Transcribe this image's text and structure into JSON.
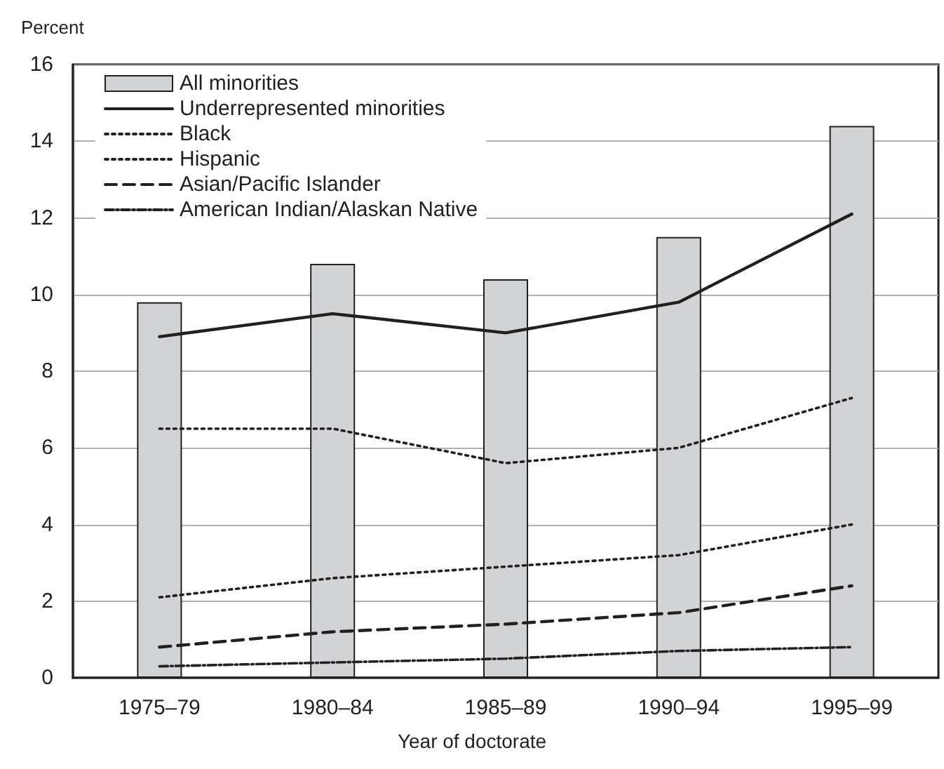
{
  "chart_data": {
    "type": "bar",
    "ylabel": "Percent",
    "xlabel": "Year of doctorate",
    "categories": [
      "1975–79",
      "1980–84",
      "1985–89",
      "1990–94",
      "1995–99"
    ],
    "series": [
      {
        "name": "All minorities",
        "color": "#d1d3d4",
        "values": [
          9.8,
          10.8,
          10.4,
          11.5,
          14.4
        ]
      },
      {
        "name": "Underrepresented minorities",
        "type": "line",
        "color": "#231f20",
        "line_style": "solid",
        "values": [
          8.9,
          9.5,
          9.0,
          9.8,
          12.1
        ]
      },
      {
        "name": "Black",
        "type": "line",
        "color": "#231f20",
        "line_style": "dotted",
        "values": [
          6.5,
          6.5,
          5.6,
          6.0,
          7.3
        ]
      },
      {
        "name": "Hispanic",
        "type": "line",
        "color": "#231f20",
        "line_style": "dotted",
        "values": [
          2.1,
          2.6,
          2.9,
          3.2,
          4.0
        ]
      },
      {
        "name": "Asian/Pacific Islander",
        "type": "line",
        "color": "#231f20",
        "line_style": "dashed",
        "values": [
          0.8,
          1.2,
          1.4,
          1.7,
          2.4
        ]
      },
      {
        "name": "American Indian/Alaskan Native",
        "type": "line",
        "color": "#231f20",
        "line_style": "dashdot",
        "values": [
          0.3,
          0.4,
          0.5,
          0.7,
          0.8
        ]
      }
    ],
    "ylim": [
      0,
      16
    ],
    "yticks": [
      0,
      2,
      4,
      6,
      8,
      10,
      12,
      14,
      16
    ],
    "grid": "y",
    "legend": "top left",
    "marker": "none"
  }
}
